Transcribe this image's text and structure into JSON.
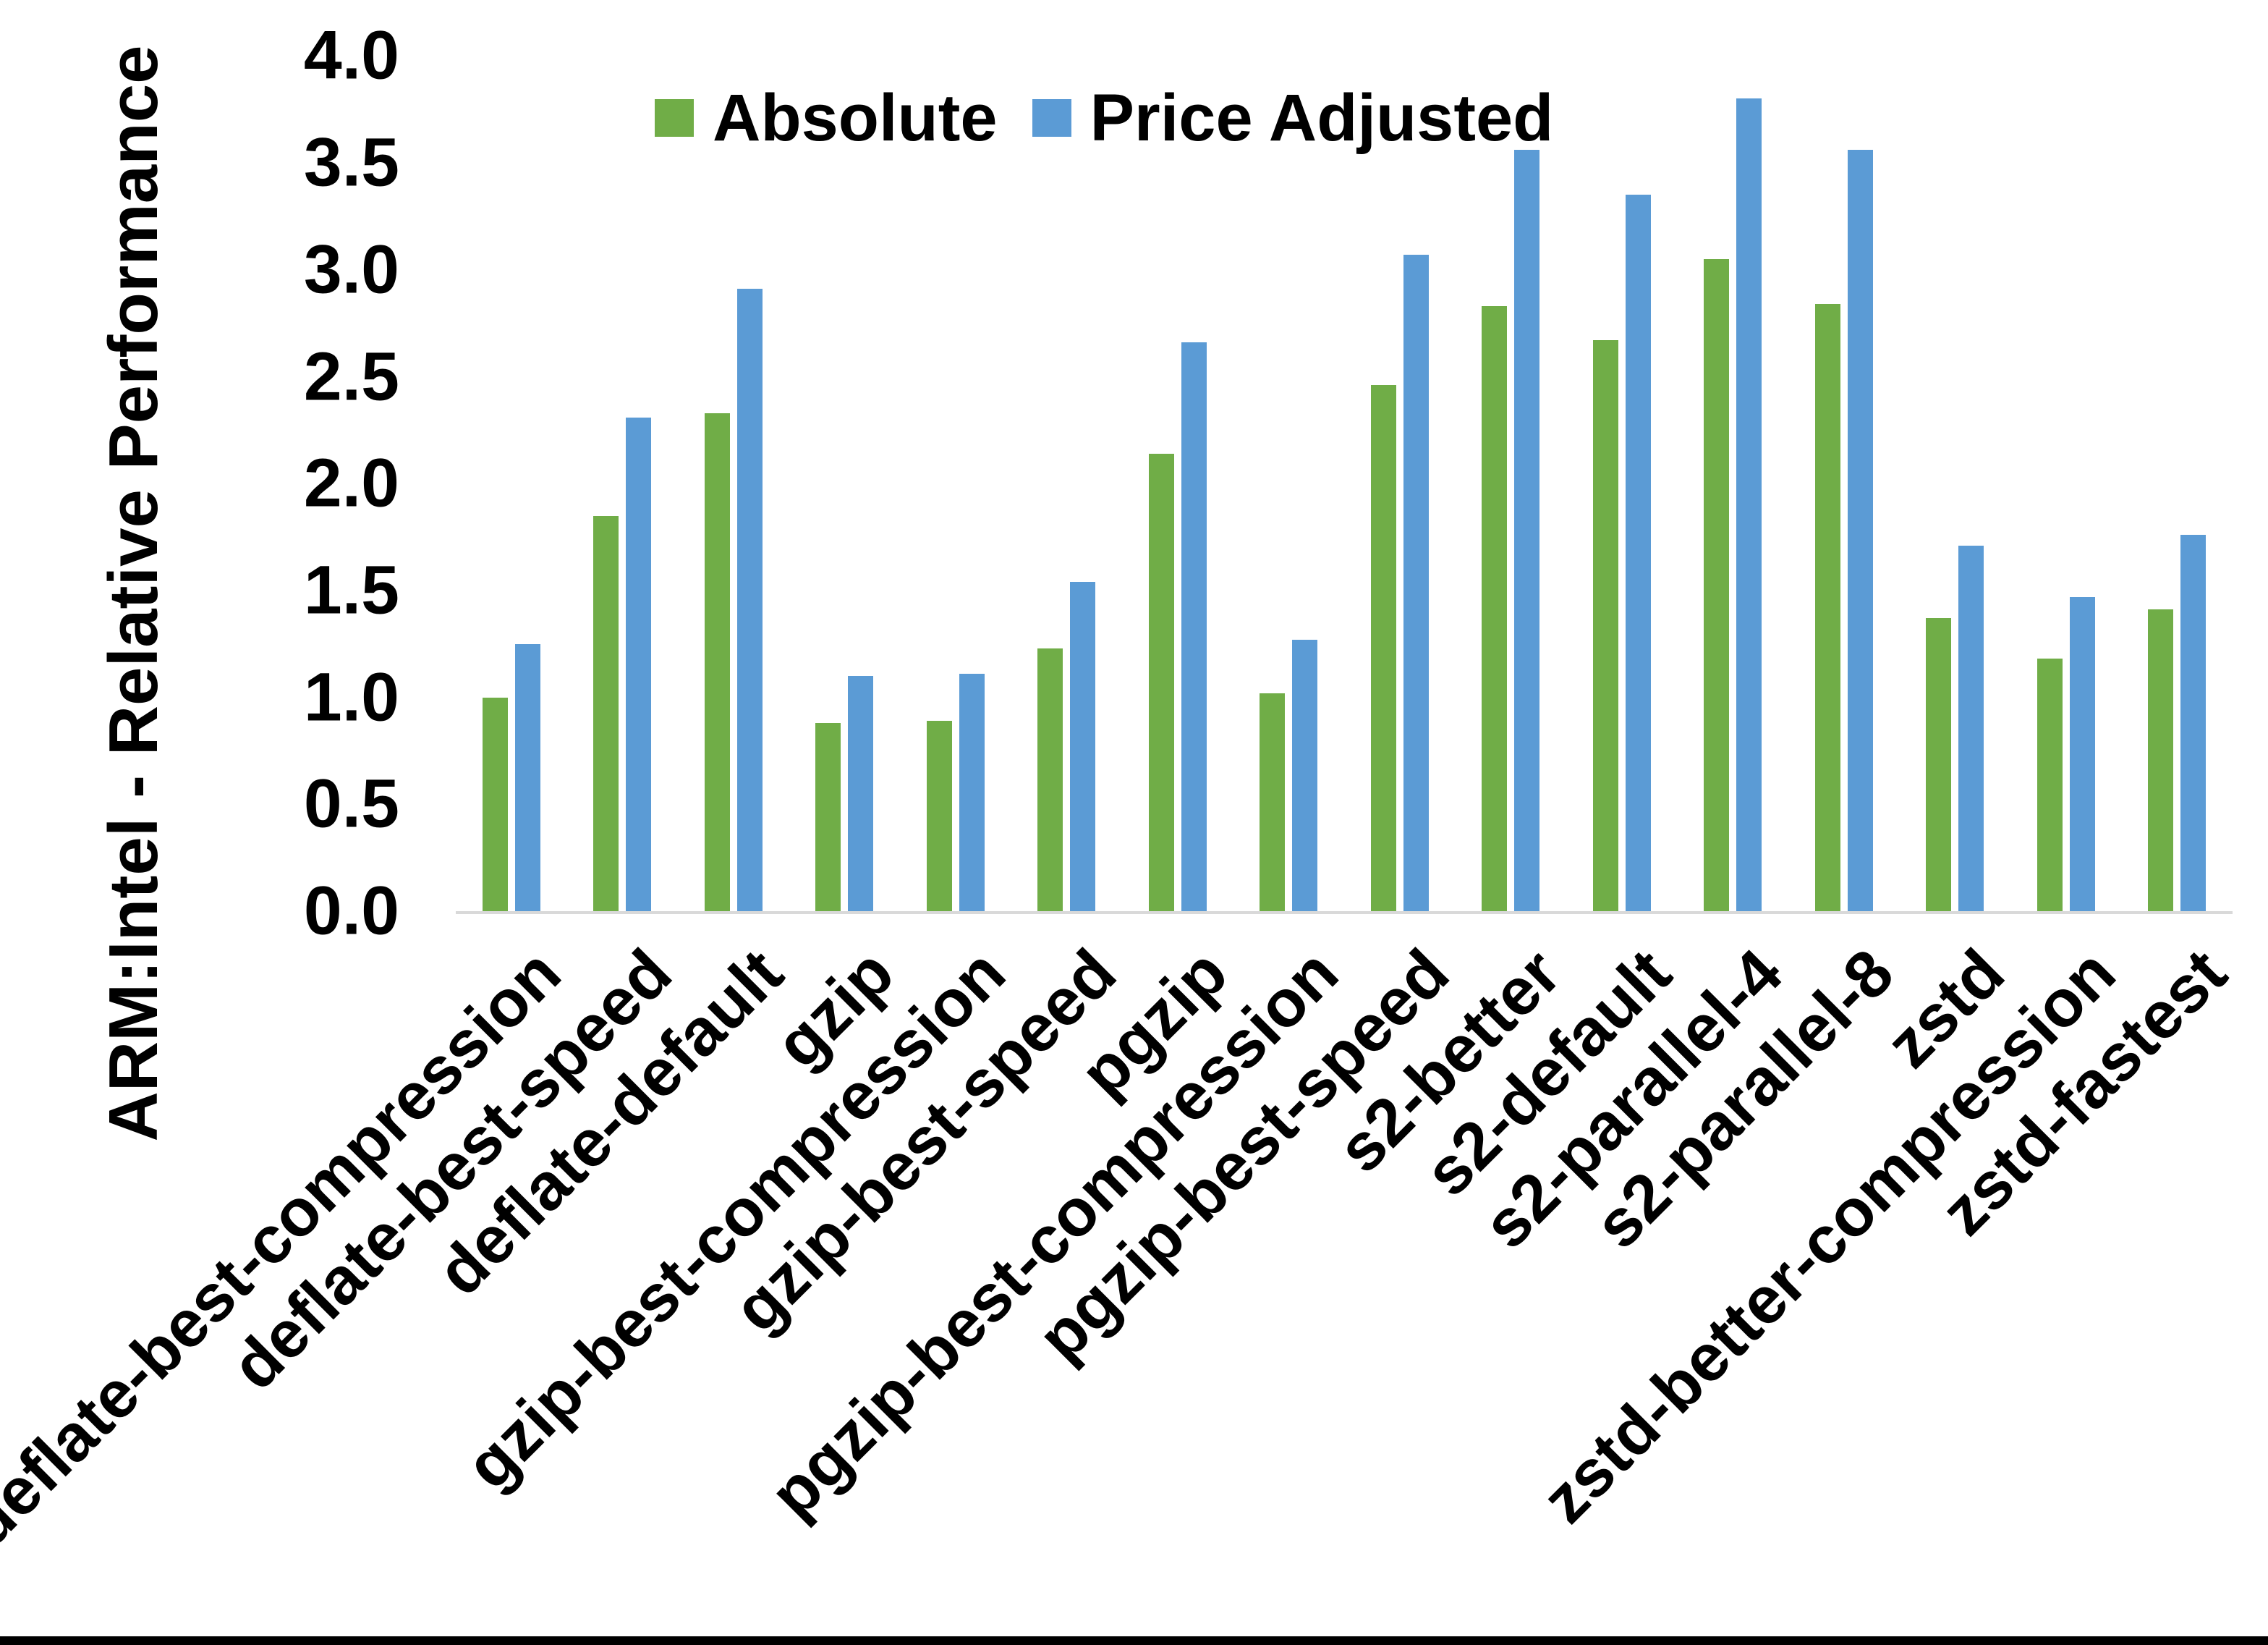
{
  "chart_data": {
    "type": "bar",
    "title": "",
    "xlabel": "",
    "ylabel": "ARM:Intel - Relative Performance",
    "ylim": [
      0.0,
      4.0
    ],
    "ytick_step": 0.5,
    "ytick_labels": [
      "0.0",
      "0.5",
      "1.0",
      "1.5",
      "2.0",
      "2.5",
      "3.0",
      "3.5",
      "4.0"
    ],
    "grid": false,
    "legend_position": "inside-top, left of center, horizontal",
    "axis_line_color": "#d9d9d9",
    "categories": [
      "deflate-best-compression",
      "deflate-best-speed",
      "deflate-default",
      "gzip",
      "gzip-best-compression",
      "gzip-best-speed",
      "pgzip",
      "pgzip-best-compression",
      "pgzip-best-speed",
      "s2-better",
      "s2-default",
      "s2-parallel-4",
      "s2-parallel-8",
      "zstd",
      "zstd-better-compression",
      "zstd-fastest"
    ],
    "series": [
      {
        "name": "Absolute",
        "color": "#70ad47",
        "values": [
          1.0,
          1.85,
          2.33,
          0.88,
          0.89,
          1.23,
          2.14,
          1.02,
          2.46,
          2.83,
          2.67,
          3.05,
          2.84,
          1.37,
          1.18,
          1.41
        ]
      },
      {
        "name": "Price Adjusted",
        "color": "#5b9bd5",
        "values": [
          1.25,
          2.31,
          2.91,
          1.1,
          1.11,
          1.54,
          2.66,
          1.27,
          3.07,
          3.56,
          3.35,
          3.8,
          3.56,
          1.71,
          1.47,
          1.76
        ]
      }
    ]
  }
}
